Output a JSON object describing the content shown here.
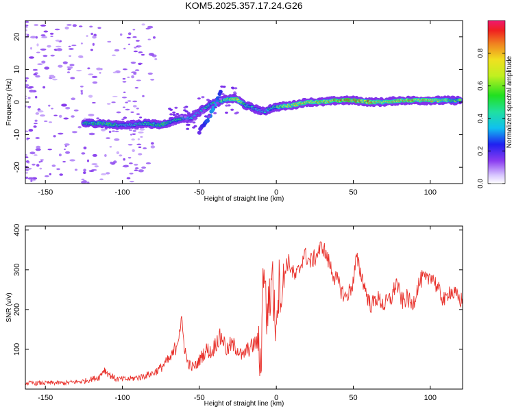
{
  "figure": {
    "title": "KOM5.2025.357.17.24.G26"
  },
  "colorbar": {
    "label": "Normalized spectral amplitude",
    "ticks": [
      "0.0",
      "0.2",
      "0.4",
      "0.6",
      "0.8"
    ],
    "tick_values": [
      0.0,
      0.2,
      0.4,
      0.6,
      0.8
    ],
    "range": [
      0,
      1
    ]
  },
  "chart_data": [
    {
      "type": "heatmap",
      "name": "spectrogram",
      "title": "",
      "xlabel": "Height of straight line (km)",
      "ylabel": "Frequency (Hz)",
      "xlim": [
        -163,
        121
      ],
      "ylim": [
        -25,
        25
      ],
      "xticks": [
        -150,
        -100,
        -50,
        0,
        50,
        100
      ],
      "xtick_labels": [
        "-150",
        "-100",
        "-50",
        "0",
        "50",
        "100"
      ],
      "yticks": [
        -20,
        -10,
        0,
        10,
        20
      ],
      "ytick_labels": [
        "-20",
        "-10",
        "0",
        "10",
        "20"
      ],
      "ridge": {
        "x": [
          -125,
          -115,
          -105,
          -95,
          -85,
          -75,
          -68,
          -62,
          -56,
          -50,
          -44,
          -38,
          -32,
          -26,
          -20,
          -14,
          -8,
          -4,
          0,
          10,
          20,
          30,
          40,
          50,
          60,
          70,
          80,
          90,
          100,
          110,
          120
        ],
        "f": [
          -6.5,
          -6.5,
          -7,
          -7,
          -6.5,
          -7,
          -6,
          -5,
          -5,
          -3,
          -1,
          0,
          1,
          1,
          -1,
          -2,
          -3,
          -2,
          -1.5,
          -1,
          0,
          0,
          0.5,
          0.5,
          0,
          0,
          0.5,
          0.5,
          0.5,
          0.5,
          0.5
        ],
        "amp": [
          0.5,
          0.6,
          0.55,
          0.45,
          0.5,
          0.6,
          0.5,
          0.55,
          0.45,
          0.4,
          0.5,
          0.6,
          0.7,
          0.85,
          0.5,
          0.45,
          0.4,
          0.5,
          0.6,
          0.8,
          0.85,
          0.9,
          0.95,
          1.0,
          0.9,
          0.8,
          0.85,
          0.9,
          0.85,
          0.75,
          0.6
        ]
      },
      "branch": {
        "x": [
          -50,
          -44,
          -40,
          -36
        ],
        "f": [
          -9,
          -5,
          -1,
          3
        ],
        "amp": [
          0.2,
          0.3,
          0.35,
          0.25
        ]
      }
    },
    {
      "type": "line",
      "name": "snr",
      "title": "",
      "xlabel": "Height of straight line (km)",
      "ylabel": "SNR (v/v)",
      "xlim": [
        -163,
        121
      ],
      "ylim": [
        0,
        410
      ],
      "xticks": [
        -150,
        -100,
        -50,
        0,
        50,
        100
      ],
      "xtick_labels": [
        "-150",
        "-100",
        "-50",
        "0",
        "50",
        "100"
      ],
      "yticks": [
        100,
        200,
        300,
        400
      ],
      "ytick_labels": [
        "100",
        "200",
        "300",
        "400"
      ],
      "color": "#e8302a",
      "series": [
        {
          "name": "SNR",
          "x": [
            -163,
            -155,
            -150,
            -145,
            -140,
            -135,
            -130,
            -125,
            -120,
            -115,
            -112,
            -108,
            -104,
            -100,
            -96,
            -92,
            -88,
            -84,
            -80,
            -76,
            -72,
            -68,
            -65,
            -62,
            -60,
            -58,
            -55,
            -52,
            -48,
            -45,
            -42,
            -40,
            -38,
            -35,
            -32,
            -30,
            -28,
            -25,
            -22,
            -20,
            -18,
            -15,
            -12,
            -10,
            -9,
            -8,
            -7,
            -6,
            -5,
            -4,
            -3,
            -2,
            -1,
            0,
            2,
            4,
            6,
            8,
            10,
            12,
            15,
            18,
            20,
            22,
            25,
            28,
            30,
            32,
            35,
            38,
            40,
            42,
            45,
            48,
            50,
            52,
            55,
            58,
            60,
            62,
            65,
            68,
            70,
            72,
            75,
            78,
            80,
            82,
            85,
            88,
            90,
            92,
            95,
            98,
            100,
            102,
            105,
            108,
            110,
            112,
            115,
            118,
            121
          ],
          "values": [
            15,
            15,
            15,
            16,
            15,
            16,
            18,
            20,
            25,
            30,
            50,
            35,
            25,
            25,
            25,
            28,
            30,
            35,
            40,
            50,
            65,
            80,
            110,
            170,
            120,
            70,
            55,
            60,
            85,
            100,
            90,
            110,
            125,
            130,
            95,
            110,
            110,
            100,
            80,
            95,
            100,
            110,
            120,
            60,
            220,
            340,
            230,
            160,
            260,
            180,
            330,
            250,
            160,
            200,
            270,
            240,
            310,
            320,
            300,
            280,
            300,
            340,
            330,
            320,
            330,
            350,
            360,
            340,
            310,
            280,
            270,
            250,
            230,
            250,
            270,
            330,
            290,
            250,
            220,
            210,
            230,
            220,
            210,
            220,
            230,
            270,
            240,
            220,
            230,
            210,
            230,
            260,
            280,
            270,
            290,
            280,
            250,
            230,
            220,
            250,
            240,
            230,
            220
          ]
        }
      ]
    }
  ]
}
